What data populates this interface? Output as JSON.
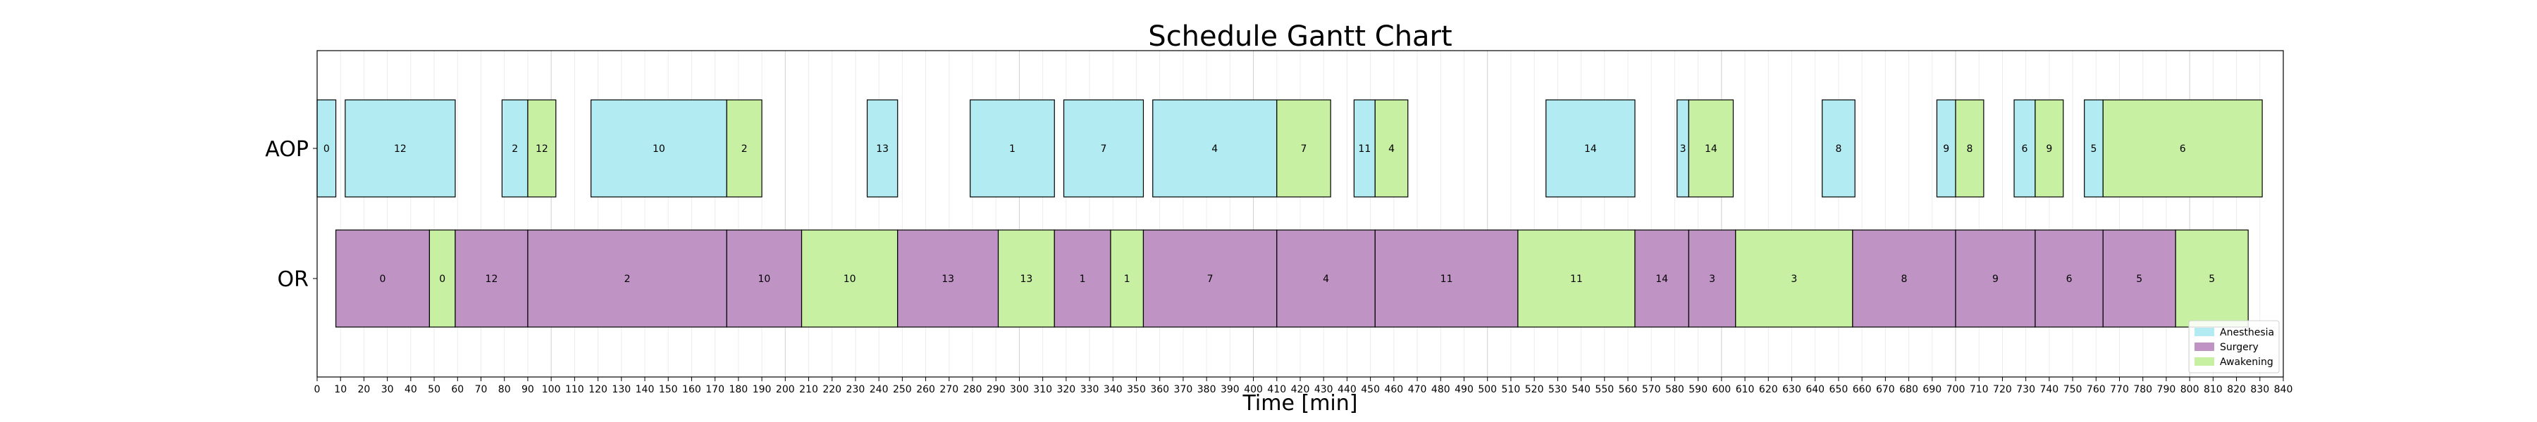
{
  "chart_data": {
    "type": "gantt",
    "title": "Schedule Gantt Chart",
    "xlabel": "Time [min]",
    "xlim": [
      0,
      840
    ],
    "xticks": [
      0,
      10,
      20,
      30,
      40,
      50,
      60,
      70,
      80,
      90,
      100,
      110,
      120,
      130,
      140,
      150,
      160,
      170,
      180,
      190,
      200,
      210,
      220,
      230,
      240,
      250,
      260,
      270,
      280,
      290,
      300,
      310,
      320,
      330,
      340,
      350,
      360,
      370,
      380,
      390,
      400,
      410,
      420,
      430,
      440,
      450,
      460,
      470,
      480,
      490,
      500,
      510,
      520,
      530,
      540,
      550,
      560,
      570,
      580,
      590,
      600,
      610,
      620,
      630,
      640,
      650,
      660,
      670,
      680,
      690,
      700,
      710,
      720,
      730,
      740,
      750,
      760,
      770,
      780,
      790,
      800,
      810,
      820,
      830,
      840
    ],
    "rows": [
      "AOP",
      "OR"
    ],
    "grid": true,
    "legend_position": "lower-right",
    "phases": [
      {
        "name": "Anesthesia",
        "color": "#b2ebf2"
      },
      {
        "name": "Surgery",
        "color": "#bf94c4"
      },
      {
        "name": "Awakening",
        "color": "#c8f0a2"
      }
    ],
    "tasks": [
      {
        "row": "AOP",
        "phase": "Anesthesia",
        "label": "0",
        "start": 0,
        "end": 8
      },
      {
        "row": "AOP",
        "phase": "Anesthesia",
        "label": "12",
        "start": 12,
        "end": 59
      },
      {
        "row": "AOP",
        "phase": "Anesthesia",
        "label": "2",
        "start": 79,
        "end": 90
      },
      {
        "row": "AOP",
        "phase": "Awakening",
        "label": "12",
        "start": 90,
        "end": 102
      },
      {
        "row": "AOP",
        "phase": "Anesthesia",
        "label": "10",
        "start": 117,
        "end": 175
      },
      {
        "row": "AOP",
        "phase": "Awakening",
        "label": "2",
        "start": 175,
        "end": 190
      },
      {
        "row": "AOP",
        "phase": "Anesthesia",
        "label": "13",
        "start": 235,
        "end": 248
      },
      {
        "row": "AOP",
        "phase": "Anesthesia",
        "label": "1",
        "start": 279,
        "end": 315
      },
      {
        "row": "AOP",
        "phase": "Anesthesia",
        "label": "7",
        "start": 319,
        "end": 353
      },
      {
        "row": "AOP",
        "phase": "Anesthesia",
        "label": "4",
        "start": 357,
        "end": 410
      },
      {
        "row": "AOP",
        "phase": "Awakening",
        "label": "7",
        "start": 410,
        "end": 433
      },
      {
        "row": "AOP",
        "phase": "Anesthesia",
        "label": "11",
        "start": 443,
        "end": 452
      },
      {
        "row": "AOP",
        "phase": "Awakening",
        "label": "4",
        "start": 452,
        "end": 466
      },
      {
        "row": "AOP",
        "phase": "Anesthesia",
        "label": "14",
        "start": 525,
        "end": 563
      },
      {
        "row": "AOP",
        "phase": "Anesthesia",
        "label": "3",
        "start": 581,
        "end": 586
      },
      {
        "row": "AOP",
        "phase": "Awakening",
        "label": "14",
        "start": 586,
        "end": 605
      },
      {
        "row": "AOP",
        "phase": "Anesthesia",
        "label": "8",
        "start": 643,
        "end": 657
      },
      {
        "row": "AOP",
        "phase": "Anesthesia",
        "label": "9",
        "start": 692,
        "end": 700
      },
      {
        "row": "AOP",
        "phase": "Awakening",
        "label": "8",
        "start": 700,
        "end": 712
      },
      {
        "row": "AOP",
        "phase": "Anesthesia",
        "label": "6",
        "start": 725,
        "end": 734
      },
      {
        "row": "AOP",
        "phase": "Awakening",
        "label": "9",
        "start": 734,
        "end": 746
      },
      {
        "row": "AOP",
        "phase": "Anesthesia",
        "label": "5",
        "start": 755,
        "end": 763
      },
      {
        "row": "AOP",
        "phase": "Awakening",
        "label": "6",
        "start": 763,
        "end": 831
      },
      {
        "row": "OR",
        "phase": "Surgery",
        "label": "0",
        "start": 8,
        "end": 48
      },
      {
        "row": "OR",
        "phase": "Awakening",
        "label": "0",
        "start": 48,
        "end": 59
      },
      {
        "row": "OR",
        "phase": "Surgery",
        "label": "12",
        "start": 59,
        "end": 90
      },
      {
        "row": "OR",
        "phase": "Surgery",
        "label": "2",
        "start": 90,
        "end": 175
      },
      {
        "row": "OR",
        "phase": "Surgery",
        "label": "10",
        "start": 175,
        "end": 207
      },
      {
        "row": "OR",
        "phase": "Awakening",
        "label": "10",
        "start": 207,
        "end": 248
      },
      {
        "row": "OR",
        "phase": "Surgery",
        "label": "13",
        "start": 248,
        "end": 291
      },
      {
        "row": "OR",
        "phase": "Awakening",
        "label": "13",
        "start": 291,
        "end": 315
      },
      {
        "row": "OR",
        "phase": "Surgery",
        "label": "1",
        "start": 315,
        "end": 339
      },
      {
        "row": "OR",
        "phase": "Awakening",
        "label": "1",
        "start": 339,
        "end": 353
      },
      {
        "row": "OR",
        "phase": "Surgery",
        "label": "7",
        "start": 353,
        "end": 410
      },
      {
        "row": "OR",
        "phase": "Surgery",
        "label": "4",
        "start": 410,
        "end": 452
      },
      {
        "row": "OR",
        "phase": "Surgery",
        "label": "11",
        "start": 452,
        "end": 513
      },
      {
        "row": "OR",
        "phase": "Awakening",
        "label": "11",
        "start": 513,
        "end": 563
      },
      {
        "row": "OR",
        "phase": "Surgery",
        "label": "14",
        "start": 563,
        "end": 586
      },
      {
        "row": "OR",
        "phase": "Surgery",
        "label": "3",
        "start": 586,
        "end": 606
      },
      {
        "row": "OR",
        "phase": "Awakening",
        "label": "3",
        "start": 606,
        "end": 656
      },
      {
        "row": "OR",
        "phase": "Surgery",
        "label": "8",
        "start": 656,
        "end": 700
      },
      {
        "row": "OR",
        "phase": "Surgery",
        "label": "9",
        "start": 700,
        "end": 734
      },
      {
        "row": "OR",
        "phase": "Surgery",
        "label": "6",
        "start": 734,
        "end": 763
      },
      {
        "row": "OR",
        "phase": "Surgery",
        "label": "5",
        "start": 763,
        "end": 794
      },
      {
        "row": "OR",
        "phase": "Awakening",
        "label": "5",
        "start": 794,
        "end": 825
      }
    ]
  }
}
